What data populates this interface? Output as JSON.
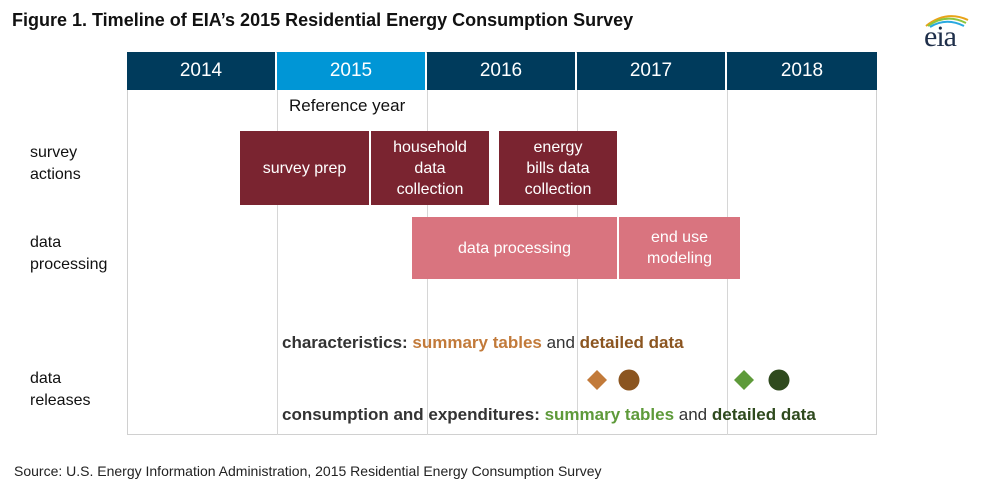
{
  "figure": {
    "title": "Figure 1. Timeline of EIA’s 2015 Residential Energy Consumption Survey",
    "source": "Source: U.S. Energy Information Administration, 2015 Residential Energy Consumption Survey",
    "logo_text": "eia"
  },
  "chart_data": {
    "type": "timeline",
    "years": [
      "2014",
      "2015",
      "2016",
      "2017",
      "2018"
    ],
    "highlighted_year": "2015",
    "reference_label": "Reference year",
    "rows": [
      {
        "label_line1": "survey",
        "label_line2": "actions"
      },
      {
        "label_line1": "data",
        "label_line2": "processing"
      },
      {
        "label_line1": "data",
        "label_line2": "releases"
      }
    ],
    "activities": {
      "survey_prep": {
        "label": "survey prep",
        "row": "survey actions"
      },
      "household": {
        "line1": "household",
        "line2": "data",
        "line3": "collection",
        "row": "survey actions"
      },
      "energy_bills": {
        "line1": "energy",
        "line2": "bills data",
        "line3": "collection",
        "row": "survey actions"
      },
      "processing": {
        "label": "data processing",
        "row": "data processing"
      },
      "end_use": {
        "line1": "end use",
        "line2": "modeling",
        "row": "data processing"
      }
    },
    "releases": {
      "characteristics": {
        "prefix": "characteristics: ",
        "summary": "summary tables",
        "and": " and ",
        "detailed": "detailed data",
        "summary_color": "#c27a3a",
        "detailed_color": "#8b5520"
      },
      "consumption": {
        "prefix": "consumption and expenditures: ",
        "summary": "summary tables",
        "and": " and ",
        "detailed": "detailed data",
        "summary_color": "#5e9a3a",
        "detailed_color": "#2f4a1e"
      }
    },
    "markers": [
      {
        "release": "characteristics summary tables",
        "shape": "diamond",
        "color": "#c27a3a"
      },
      {
        "release": "characteristics detailed data",
        "shape": "circle",
        "color": "#8b5520"
      },
      {
        "release": "consumption summary tables",
        "shape": "diamond",
        "color": "#5e9a3a"
      },
      {
        "release": "consumption detailed data",
        "shape": "circle",
        "color": "#2f4a1e"
      }
    ],
    "colors": {
      "year_band": "#003b5c",
      "reference_year_band": "#0096d6",
      "survey_bar": "#7a2430",
      "processing_bar": "#d9747f"
    }
  }
}
